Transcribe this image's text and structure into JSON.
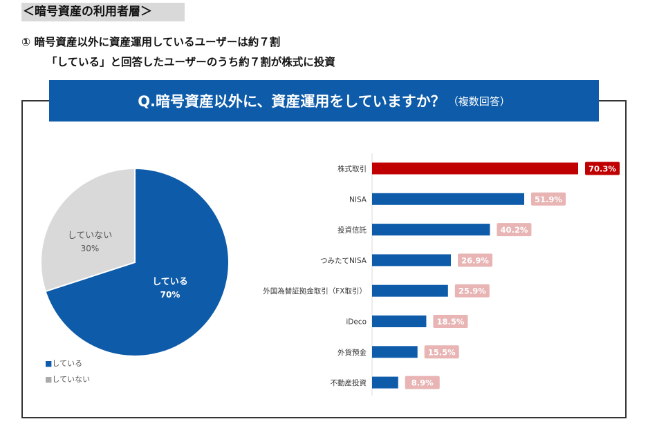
{
  "section": {
    "label": "＜暗号資産の利用者層＞"
  },
  "heading": {
    "line1": "① 暗号資産以外に資産運用しているユーザーは約７割",
    "line2": "「している」と回答したユーザーのうち約７割が株式に投資"
  },
  "question": {
    "main": "Q.暗号資産以外に、資産運用をしていますか？",
    "sub": "（複数回答）"
  },
  "colors": {
    "blue": "#0d5ba9",
    "gray": "#d9d9d9",
    "red": "#c00000",
    "pink": "#e8b4b4"
  },
  "chart_data": [
    {
      "type": "pie",
      "categories": [
        "している",
        "していない"
      ],
      "values": [
        70,
        30
      ],
      "data_labels": [
        "70%",
        "30%"
      ],
      "legend": [
        "■している",
        "■していない"
      ],
      "legend_position": "bottom-left"
    },
    {
      "type": "bar",
      "orientation": "horizontal",
      "categories": [
        "株式取引",
        "NISA",
        "投資信託",
        "つみたてNISA",
        "外国為替証拠金取引（FX取引）",
        "iDeco",
        "外貨預金",
        "不動産投資"
      ],
      "values": [
        70.3,
        51.9,
        40.2,
        26.9,
        25.9,
        18.5,
        15.5,
        8.9
      ],
      "data_labels": [
        "70.3%",
        "51.9%",
        "40.2%",
        "26.9%",
        "25.9%",
        "18.5%",
        "15.5%",
        "8.9%"
      ],
      "highlight_index": 0,
      "xlim": [
        0,
        75
      ],
      "title": "",
      "xlabel": "",
      "ylabel": ""
    }
  ]
}
